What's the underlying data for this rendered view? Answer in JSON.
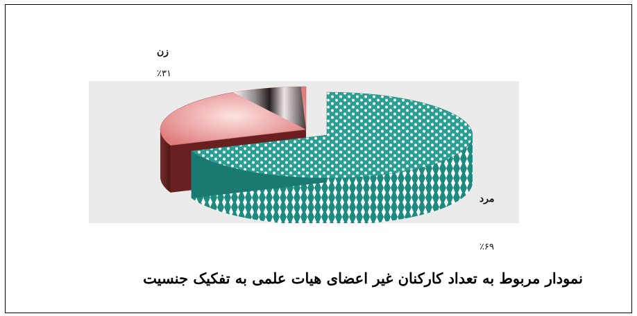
{
  "chart_data": {
    "type": "pie",
    "title": "نمودار مربوط به تعداد کارکنان غیر اعضای هیات علمی به تفکیک جنسیت",
    "categories": [
      "مرد",
      "زن"
    ],
    "values": [
      69,
      31
    ],
    "value_labels": [
      "٪۶۹",
      "٪۳۱"
    ],
    "colors": [
      "#2a9f94",
      "#e08c8c"
    ],
    "style": "3d-exploded"
  }
}
